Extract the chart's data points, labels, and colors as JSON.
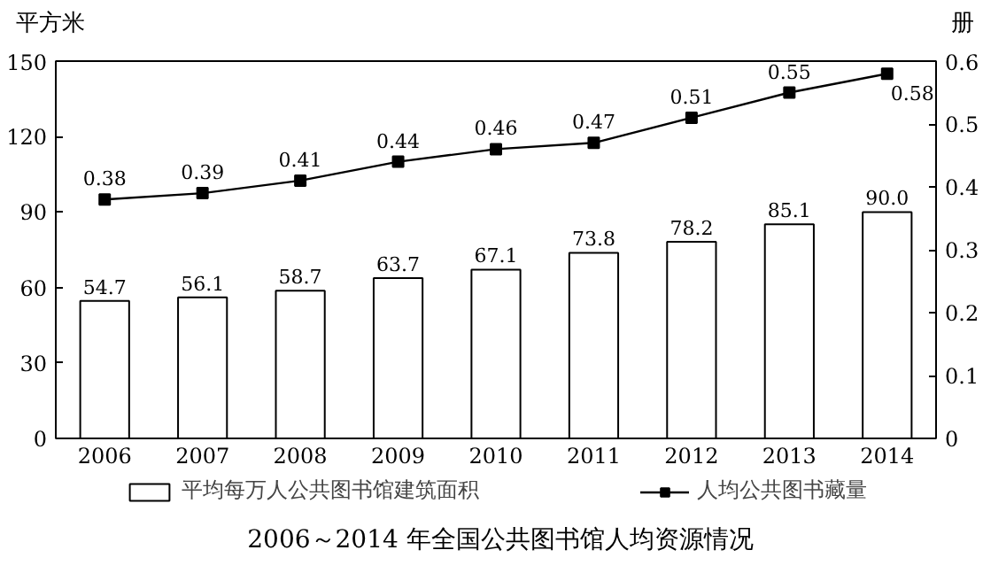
{
  "chart_data": {
    "type": "bar",
    "title": "2006～2014 年全国公共图书馆人均资源情况",
    "ylabel": "平方米",
    "y2label": "册",
    "categories": [
      "2006",
      "2007",
      "2008",
      "2009",
      "2010",
      "2011",
      "2012",
      "2013",
      "2014"
    ],
    "series": [
      {
        "name": "平均每万人公共图书馆建筑面积",
        "color": "#ffffff",
        "values": [
          54.7,
          56.1,
          58.7,
          63.7,
          67.1,
          73.8,
          78.2,
          85.1,
          90.0
        ],
        "value_labels": [
          "54.7",
          "56.1",
          "58.7",
          "63.7",
          "67.1",
          "73.8",
          "78.2",
          "85.1",
          "90.0"
        ]
      },
      {
        "name": "人均公共图书藏量",
        "type": "line",
        "axis": "y2",
        "color": "#000000",
        "values": [
          0.38,
          0.39,
          0.41,
          0.44,
          0.46,
          0.47,
          0.51,
          0.55,
          0.58
        ],
        "value_labels": [
          "0.38",
          "0.39",
          "0.41",
          "0.44",
          "0.46",
          "0.47",
          "0.51",
          "0.55",
          "0.58"
        ]
      }
    ],
    "ylim": [
      0,
      150
    ],
    "yticks": [
      0,
      30,
      60,
      90,
      120,
      150
    ],
    "y2lim": [
      0,
      0.6
    ],
    "y2ticks": [
      0,
      0.1,
      0.2,
      0.3,
      0.4,
      0.5,
      0.6
    ],
    "marker": "square",
    "line_style": "solid",
    "legend": "bottom",
    "grid": false
  }
}
